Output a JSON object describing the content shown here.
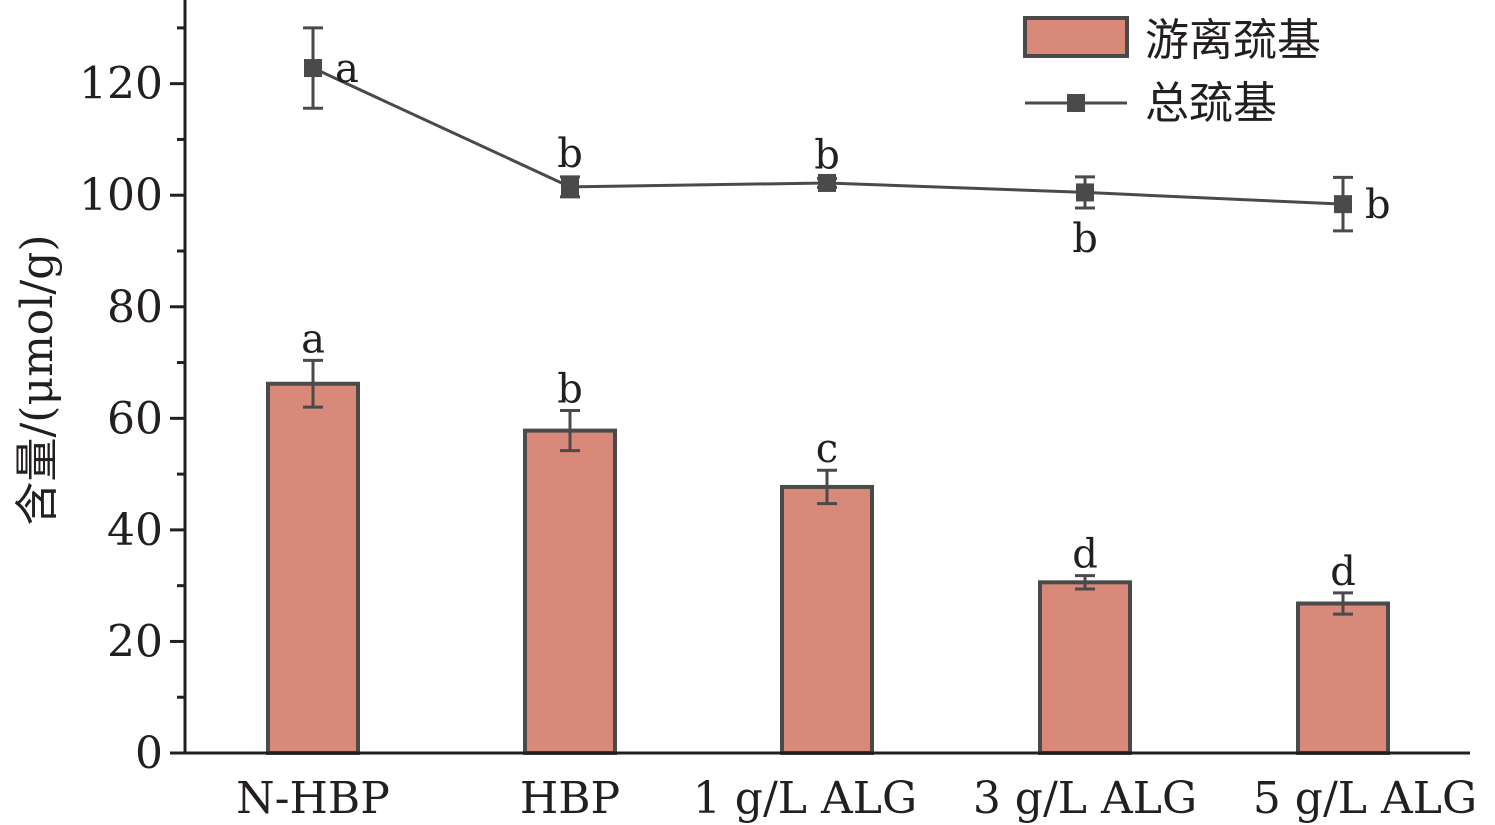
{
  "chart_data": {
    "type": "bar",
    "categories": [
      "N-HBP",
      "HBP",
      "1 g/L ALG",
      "3 g/L ALG",
      "5 g/L ALG"
    ],
    "ylabel": "含量/(μmol/g)",
    "xlabel": "",
    "ylim": [
      0,
      135
    ],
    "yticks": [
      0,
      20,
      40,
      60,
      80,
      100,
      120
    ],
    "legend_position": "top-right",
    "series": [
      {
        "name": "游离巯基",
        "kind": "bar",
        "values": [
          66.2,
          57.8,
          47.7,
          30.6,
          26.8
        ],
        "errors": [
          4.2,
          3.6,
          3.0,
          1.2,
          1.9
        ],
        "letters": [
          "a",
          "b",
          "c",
          "d",
          "d"
        ],
        "color": "#d9897a",
        "edge_color": "#4a4a4a"
      },
      {
        "name": "总巯基",
        "kind": "line",
        "marker": "square",
        "values": [
          122.8,
          101.5,
          102.2,
          100.5,
          98.4
        ],
        "errors": [
          7.2,
          1.8,
          0.8,
          2.8,
          4.8
        ],
        "letters": [
          "a",
          "b",
          "b",
          "b",
          "b"
        ],
        "letter_positions": [
          "right",
          "above",
          "above",
          "below",
          "right"
        ],
        "color": "#4a4a4a"
      }
    ],
    "grid": false
  }
}
